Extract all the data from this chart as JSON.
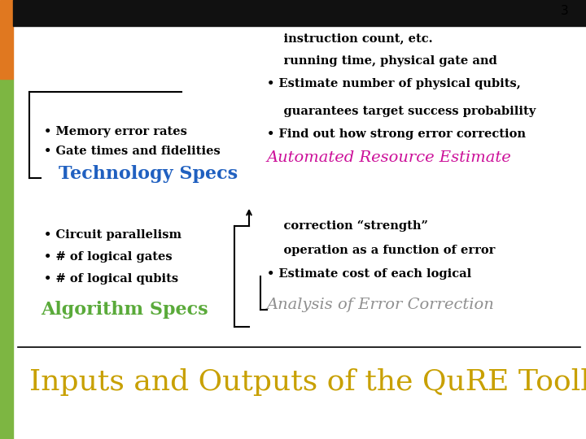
{
  "title": "Inputs and Outputs of the QuRE Toolbox",
  "title_color": "#C8A000",
  "background_color": "#FFFFFF",
  "left_bar_color": "#7DB642",
  "left_bar2_color": "#E07820",
  "slide_number": "3",
  "algo_specs_title": "Algorithm Specs",
  "algo_specs_color": "#5AAA3A",
  "algo_specs_items": [
    "# of logical qubits",
    "# of logical gates",
    "Circuit parallelism"
  ],
  "tech_specs_title": "Technology Specs",
  "tech_specs_color": "#2060C0",
  "tech_specs_items": [
    "Gate times and fidelities",
    "Memory error rates"
  ],
  "analysis_title": "Analysis of Error Correction",
  "analysis_color": "#909090",
  "analysis_items": [
    "Estimate cost of each logical\noperation as a function of error\ncorrection “strength”"
  ],
  "auto_resource_title": "Automated Resource Estimate",
  "auto_resource_color": "#CC1099",
  "auto_resource_items": [
    "Find out how strong error correction\nguarantees target success probability",
    "Estimate number of physical qubits,\nrunning time, physical gate and\ninstruction count, etc."
  ],
  "item_color": "#000000",
  "item_fontsize": 10.5,
  "title_fontsize": 26,
  "section_title_fontsize": 16
}
